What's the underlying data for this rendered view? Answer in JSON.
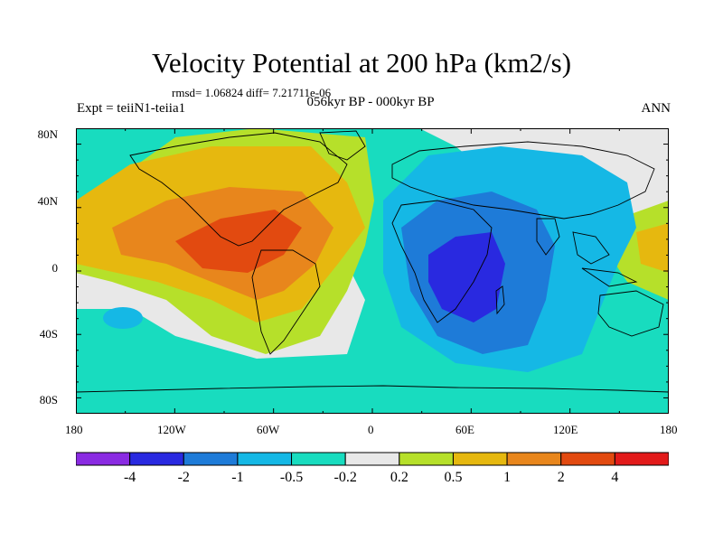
{
  "title": "Velocity Potential at 200 hPa (km2/s)",
  "stats": "rmsd= 1.06824 diff= 7.21711e-06",
  "periods": "056kyr BP - 000kyr BP",
  "experiment": "Expt = teiiN1-teiia1",
  "season": "ANN",
  "lat_labels": [
    "80N",
    "40N",
    "0",
    "40S",
    "80S"
  ],
  "lon_labels": [
    "180",
    "120W",
    "60W",
    "0",
    "60E",
    "120E",
    "180"
  ],
  "colorbar": {
    "labels": [
      "-4",
      "-2",
      "-1",
      "-0.5",
      "-0.2",
      "0.2",
      "0.5",
      "1",
      "2",
      "4"
    ],
    "colors": [
      "#8a2be2",
      "#2929e0",
      "#1e7bd8",
      "#15b8e5",
      "#18dcbf",
      "#e8e8e8",
      "#b6e02a",
      "#e6b80f",
      "#e8861c",
      "#e24a10",
      "#e21a1a"
    ]
  }
}
